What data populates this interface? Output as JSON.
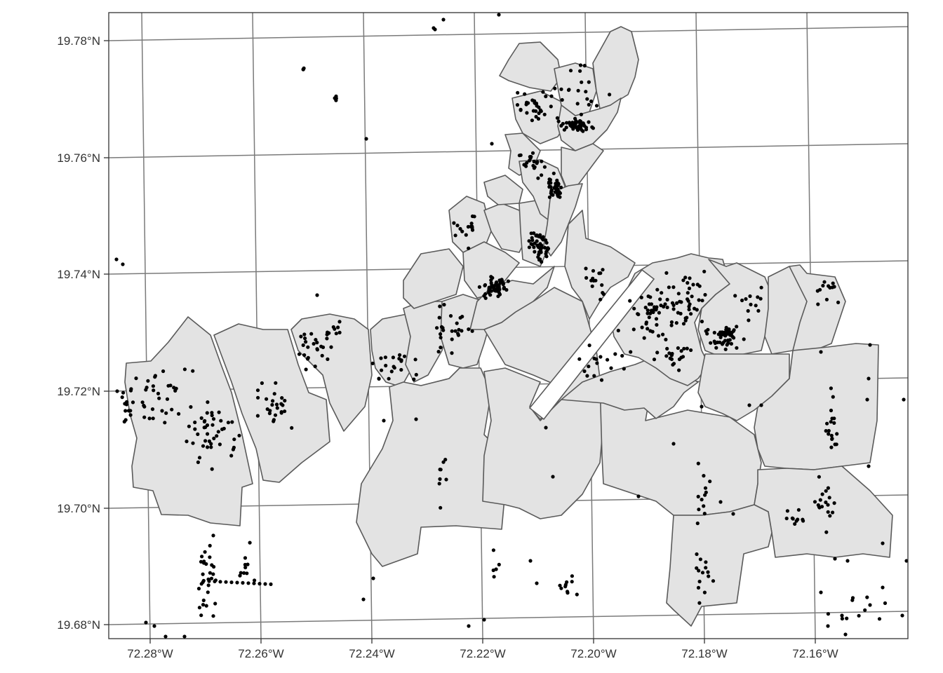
{
  "map": {
    "graticule_color": "#7a7a7a",
    "polygon_fill": "#e3e3e3",
    "polygon_stroke": "#5a5a5a",
    "point_color": "#000000",
    "y_axis_labels": [
      "19.78°N",
      "19.76°N",
      "19.74°N",
      "19.72°N",
      "19.70°N",
      "19.68°N"
    ],
    "x_axis_labels": [
      "72.28°W",
      "72.26°W",
      "72.24°W",
      "72.22°W",
      "72.20°W",
      "72.18°W",
      "72.16°W"
    ]
  }
}
